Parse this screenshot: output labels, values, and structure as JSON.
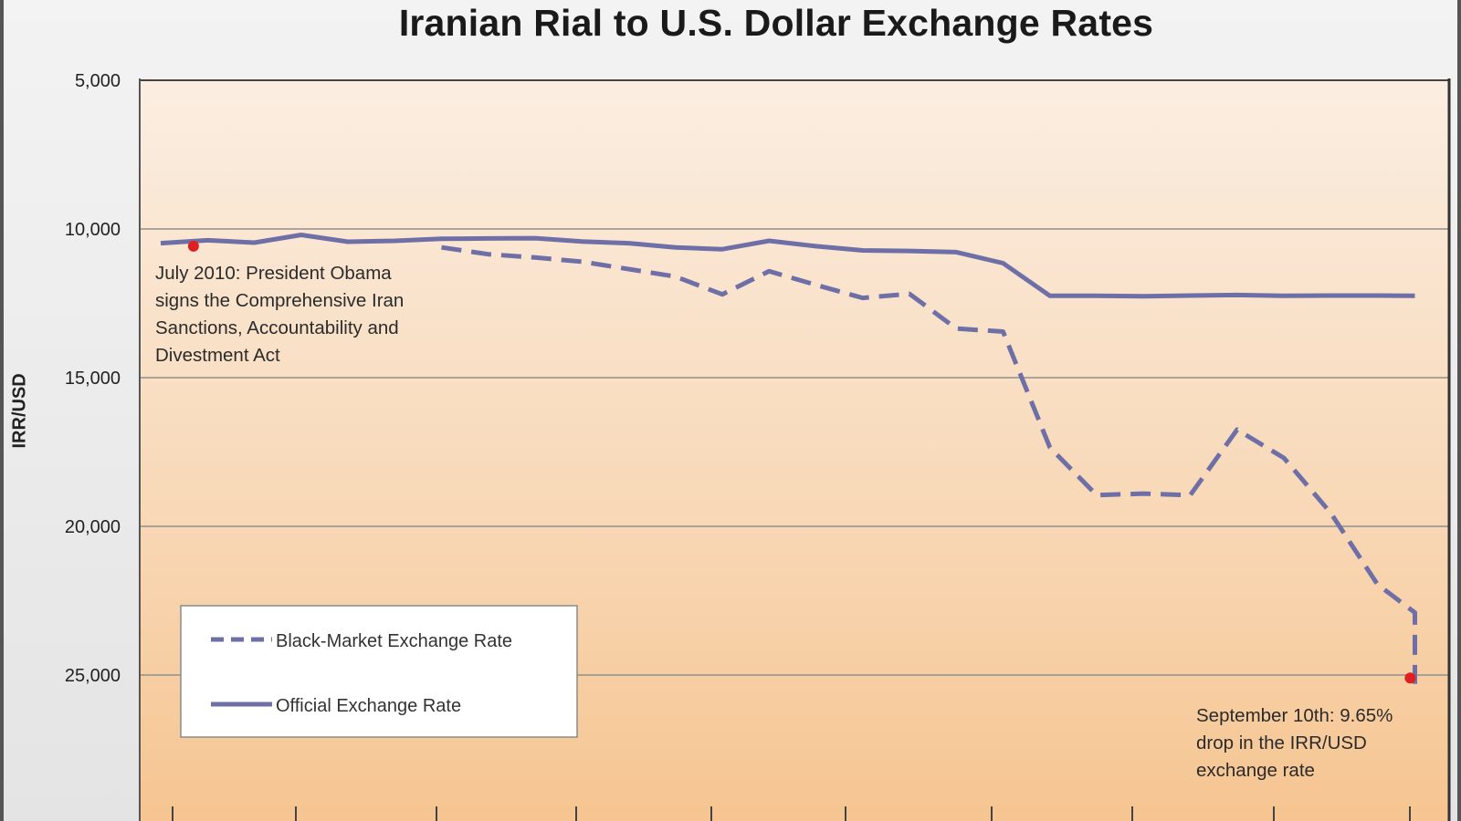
{
  "chart_data": {
    "type": "line",
    "title": "Iranian Rial to U.S. Dollar Exchange Rates",
    "xlabel": "",
    "ylabel": "IRR/USD",
    "y_reversed": true,
    "ylim": [
      5000,
      29000
    ],
    "y_ticks": [
      5000,
      10000,
      15000,
      20000,
      25000
    ],
    "y_tick_labels": [
      "5,000",
      "10,000",
      "15,000",
      "20,000",
      "25,000"
    ],
    "grid": true,
    "legend_position": "bottom-left",
    "series": [
      {
        "name": "Official Exchange Rate",
        "style": "solid",
        "color": "#6f6fa8",
        "points": [
          [
            0,
            10480
          ],
          [
            0.5,
            10380
          ],
          [
            1,
            10460
          ],
          [
            1.5,
            10200
          ],
          [
            2,
            10430
          ],
          [
            2.5,
            10400
          ],
          [
            3,
            10330
          ],
          [
            3.5,
            10320
          ],
          [
            4,
            10310
          ],
          [
            4.5,
            10420
          ],
          [
            5,
            10480
          ],
          [
            5.5,
            10620
          ],
          [
            6,
            10680
          ],
          [
            6.5,
            10400
          ],
          [
            7,
            10580
          ],
          [
            7.5,
            10720
          ],
          [
            8,
            10740
          ],
          [
            8.5,
            10780
          ],
          [
            9,
            11150
          ],
          [
            9.5,
            12250
          ],
          [
            10,
            12250
          ],
          [
            10.5,
            12260
          ],
          [
            11,
            12240
          ],
          [
            11.5,
            12220
          ],
          [
            12,
            12250
          ],
          [
            12.5,
            12240
          ],
          [
            13,
            12240
          ],
          [
            13.4,
            12250
          ]
        ]
      },
      {
        "name": "Black-Market Exchange Rate",
        "style": "dashed",
        "color": "#6f6fa8",
        "points": [
          [
            3,
            10620
          ],
          [
            3.5,
            10850
          ],
          [
            4,
            10960
          ],
          [
            4.5,
            11100
          ],
          [
            5,
            11350
          ],
          [
            5.5,
            11600
          ],
          [
            6,
            12200
          ],
          [
            6.5,
            11420
          ],
          [
            7,
            11880
          ],
          [
            7.5,
            12320
          ],
          [
            8,
            12180
          ],
          [
            8.5,
            13350
          ],
          [
            9,
            13450
          ],
          [
            9.5,
            17350
          ],
          [
            10,
            18950
          ],
          [
            10.5,
            18900
          ],
          [
            11,
            18950
          ],
          [
            11.5,
            16750
          ],
          [
            12,
            17700
          ],
          [
            12.5,
            19550
          ],
          [
            13,
            21950
          ],
          [
            13.4,
            22900
          ],
          [
            13.4,
            25300
          ]
        ]
      }
    ],
    "annotations": [
      {
        "x": 0.35,
        "y": 10580,
        "marker_color": "#e02020",
        "lines": [
          "July 2010: President Obama",
          "signs the Comprehensive Iran",
          "Sanctions, Accountability and",
          "Divestment Act"
        ]
      },
      {
        "x": 13.35,
        "y": 25100,
        "marker_color": "#e02020",
        "lines": [
          "September 10th: 9.65%",
          "drop in the IRR/USD",
          "exchange rate"
        ]
      }
    ],
    "x_tick_count": 10
  },
  "legend": {
    "black_market_label": "Black-Market Exchange Rate",
    "official_label": "Official Exchange Rate"
  }
}
